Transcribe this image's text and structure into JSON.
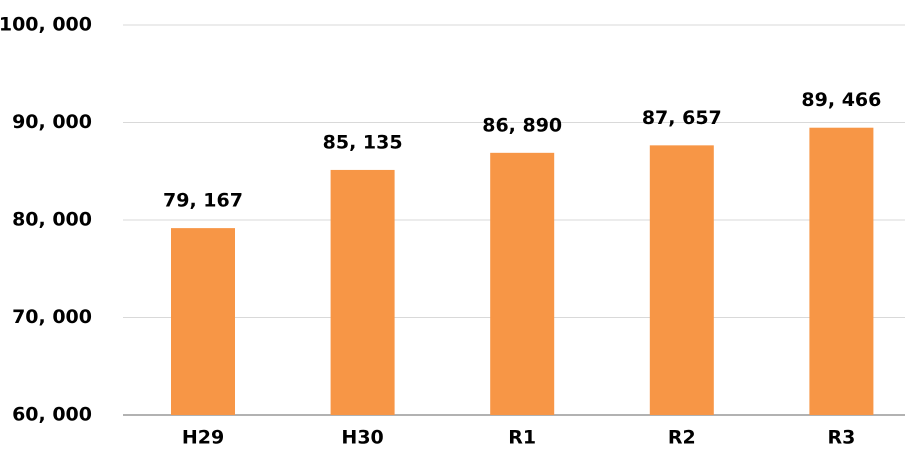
{
  "chart_data": {
    "type": "bar",
    "categories": [
      "H29",
      "H30",
      "R1",
      "R2",
      "R3"
    ],
    "values": [
      79167,
      85135,
      86890,
      87657,
      89466
    ],
    "value_labels": [
      "79, 167",
      "85, 135",
      "86, 890",
      "87, 657",
      "89, 466"
    ],
    "color": "#f79646",
    "ylim": [
      60000,
      100000
    ],
    "yticks": [
      {
        "value": 60000,
        "label": "60, 000"
      },
      {
        "value": 70000,
        "label": "70, 000"
      },
      {
        "value": 80000,
        "label": "80, 000"
      },
      {
        "value": 90000,
        "label": "90, 000"
      },
      {
        "value": 100000,
        "label": "100, 000"
      }
    ],
    "grid": true
  }
}
